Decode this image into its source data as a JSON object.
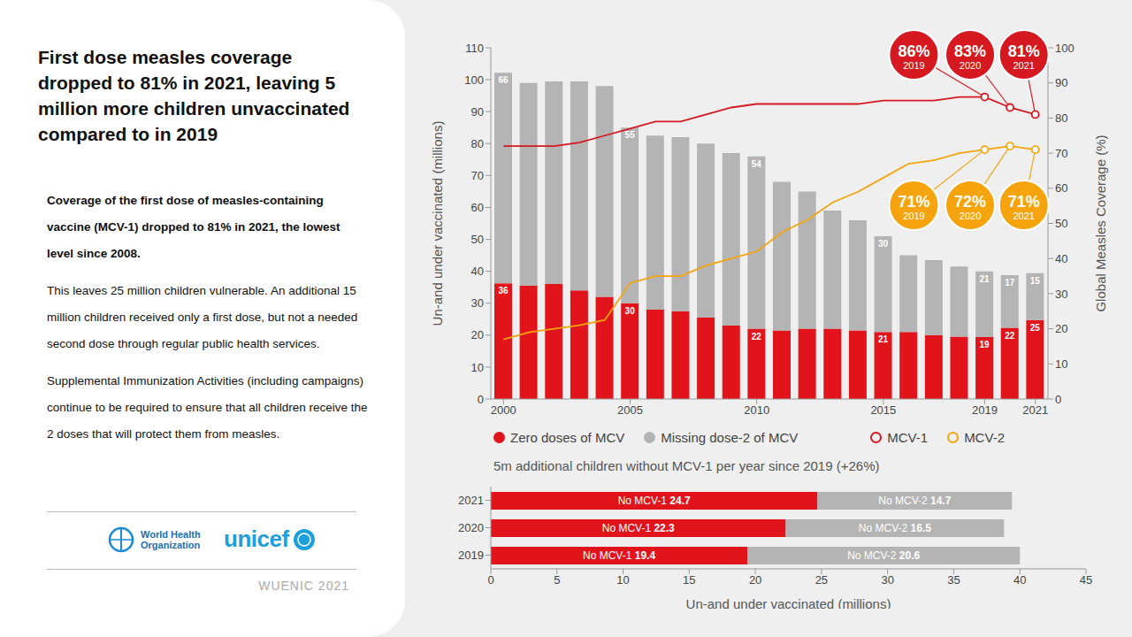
{
  "page": {
    "title": "First dose measles coverage dropped to 81% in 2021, leaving 5 million more children unvaccinated compared to in 2019",
    "lead": "Coverage of the first dose of measles-containing vaccine (MCV-1) dropped to 81% in 2021, the lowest level since 2008.",
    "paragraphs": [
      "This leaves 25 million children vulnerable. An additional 15 million children received only a first dose, but not a needed second dose through regular public health services.",
      "Supplemental Immunization Activities (including campaigns) continue to be required to ensure that all children receive the 2 doses that will protect them from measles."
    ],
    "logos": [
      "World Health Organization",
      "unicef"
    ],
    "footer": "WUENIC 2021"
  },
  "chart_data": [
    {
      "type": "bar",
      "stacked": true,
      "x": [
        2000,
        2001,
        2002,
        2003,
        2004,
        2005,
        2006,
        2007,
        2008,
        2009,
        2010,
        2011,
        2012,
        2013,
        2014,
        2015,
        2016,
        2017,
        2018,
        2019,
        2020,
        2021
      ],
      "xlim": [
        1999.5,
        2021.5
      ],
      "xticks": [
        2000,
        2005,
        2010,
        2015,
        2019,
        2021
      ],
      "ylabel": "Un-and under vaccinated (millions)",
      "ylim": [
        0,
        110
      ],
      "yticks": [
        0,
        10,
        20,
        30,
        40,
        50,
        60,
        70,
        80,
        90,
        100,
        110
      ],
      "y2label": "Global Measles Coverage (%)",
      "y2lim": [
        0,
        100
      ],
      "y2ticks": [
        0,
        10,
        20,
        30,
        40,
        50,
        60,
        70,
        80,
        90,
        100
      ],
      "grid": false,
      "legend": "bottom",
      "series": [
        {
          "name": "Zero doses of MCV",
          "type": "bar",
          "color": "#e2141b",
          "values": [
            36.2,
            35.5,
            36,
            34,
            32,
            30,
            28,
            27.5,
            25.5,
            23,
            22,
            21.5,
            22,
            22,
            21.5,
            21,
            21,
            20,
            19.5,
            19.4,
            22.3,
            24.7
          ],
          "value_labels": [
            "36",
            null,
            null,
            null,
            null,
            "30",
            null,
            null,
            null,
            null,
            "22",
            null,
            null,
            null,
            null,
            "21",
            null,
            null,
            null,
            "19",
            "22",
            "25"
          ]
        },
        {
          "name": "Missing dose-2 of MCV",
          "type": "bar",
          "color": "#b4b4b4",
          "values": [
            66,
            63.5,
            63.5,
            65.5,
            66,
            55,
            54.5,
            54.5,
            54.5,
            54,
            54,
            46.5,
            43,
            37,
            34.5,
            30,
            24,
            23.5,
            22,
            20.6,
            16.5,
            14.7
          ],
          "value_labels": [
            "66",
            null,
            null,
            null,
            null,
            "55",
            null,
            null,
            null,
            null,
            "54",
            null,
            null,
            null,
            null,
            "30",
            null,
            null,
            null,
            "21",
            "17",
            "15"
          ]
        },
        {
          "name": "MCV-1",
          "type": "line",
          "axis": "y2",
          "color": "#d61820",
          "values": [
            72,
            72,
            72,
            73,
            75,
            77,
            79,
            79,
            81,
            83,
            84,
            84,
            84,
            84,
            84,
            85,
            85,
            85,
            86,
            86,
            83,
            81
          ]
        },
        {
          "name": "MCV-2",
          "type": "line",
          "axis": "y2",
          "color": "#f5a40d",
          "values": [
            17,
            19,
            20,
            21,
            22.5,
            33,
            35,
            35,
            38,
            40,
            42,
            47.5,
            51,
            56,
            59,
            63,
            67,
            68,
            70,
            71,
            72,
            71
          ]
        }
      ],
      "annotations": [
        {
          "series": "MCV-1",
          "x": 2019,
          "text": "86%"
        },
        {
          "series": "MCV-1",
          "x": 2020,
          "text": "83%"
        },
        {
          "series": "MCV-1",
          "x": 2021,
          "text": "81%"
        },
        {
          "series": "MCV-2",
          "x": 2019,
          "text": "71%"
        },
        {
          "series": "MCV-2",
          "x": 2020,
          "text": "72%"
        },
        {
          "series": "MCV-2",
          "x": 2021,
          "text": "71%"
        }
      ]
    },
    {
      "type": "bar",
      "orientation": "horizontal",
      "stacked": true,
      "data_labels": true,
      "title": "5m additional children without MCV-1 per year since 2019 (+26%)",
      "categories": [
        "2021",
        "2020",
        "2019"
      ],
      "xlabel": "Un-and under vaccinated (millions)",
      "xlim": [
        0,
        45
      ],
      "xticks": [
        0,
        5,
        10,
        15,
        20,
        25,
        30,
        35,
        40,
        45
      ],
      "series": [
        {
          "name": "No MCV-1",
          "color": "#e2141b",
          "values": [
            24.7,
            22.3,
            19.4
          ]
        },
        {
          "name": "No MCV-2",
          "color": "#b4b4b4",
          "values": [
            14.7,
            16.5,
            20.6
          ]
        }
      ]
    }
  ]
}
